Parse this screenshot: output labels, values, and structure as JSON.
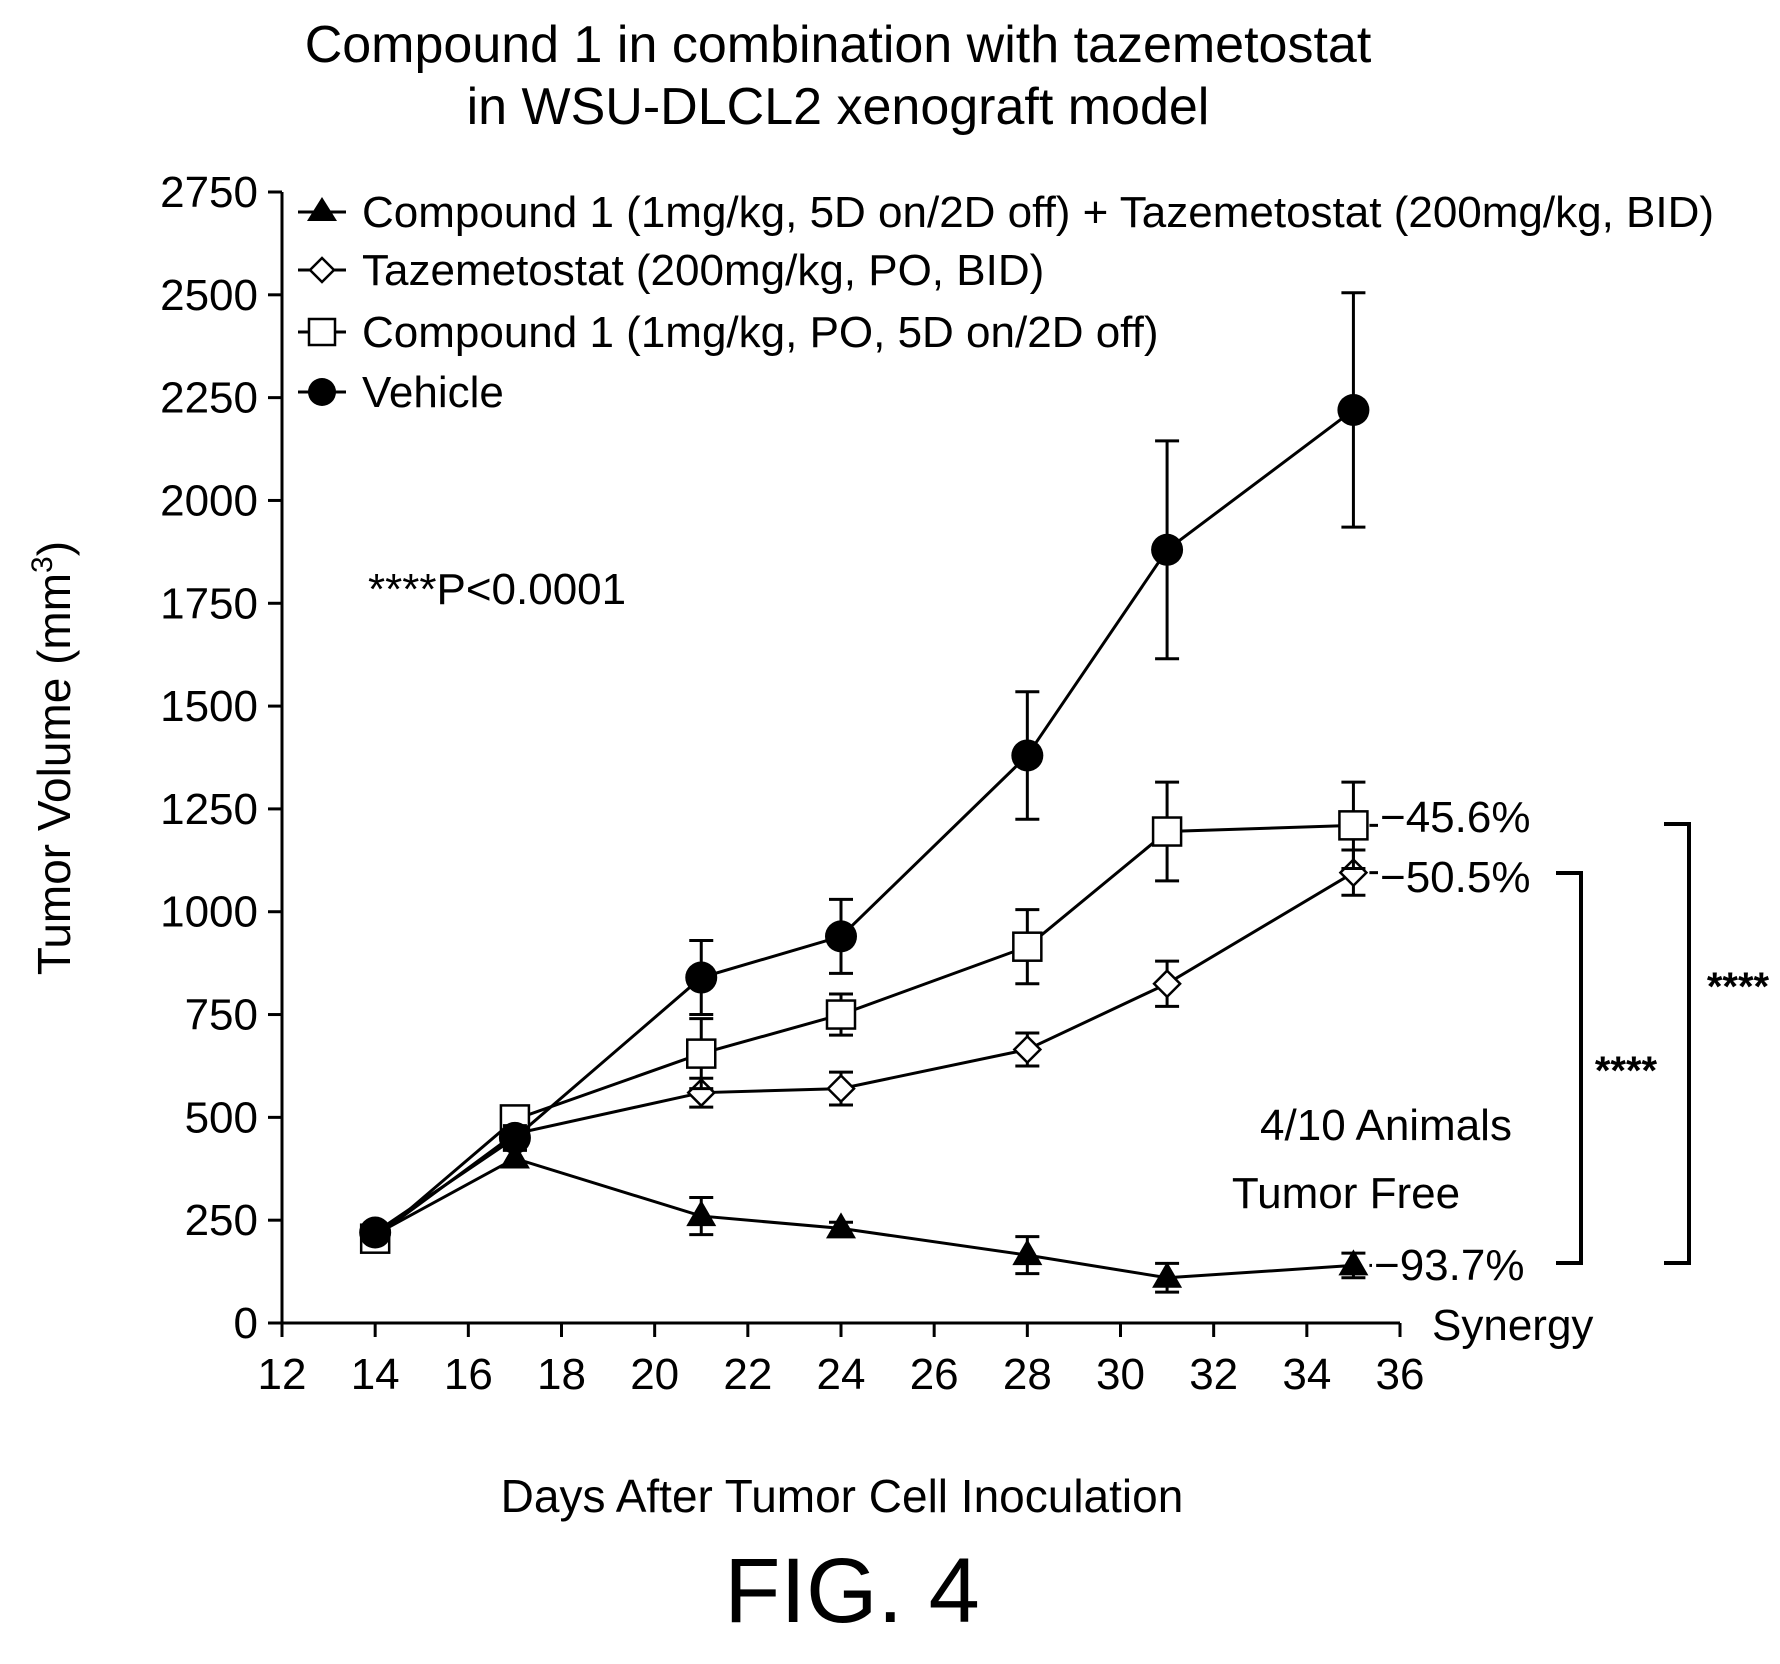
{
  "chart_data": {
    "type": "line",
    "title": "Compound 1 in combination with tazemetostat",
    "subtitle": "in WSU-DLCL2 xenograft model",
    "xlabel": "Days After Tumor Cell Inoculation",
    "ylabel": "Tumor Volume (mm",
    "ylabel_sup": "3",
    "ylabel_close": ")",
    "xlim": [
      12,
      36
    ],
    "ylim": [
      0,
      2750
    ],
    "xticks": [
      12,
      14,
      16,
      18,
      20,
      22,
      24,
      26,
      28,
      30,
      32,
      34,
      36
    ],
    "yticks": [
      0,
      250,
      500,
      750,
      1000,
      1250,
      1500,
      1750,
      2000,
      2250,
      2500,
      2750
    ],
    "grid": false,
    "legend_position": "top-left",
    "series": [
      {
        "name": "Compound 1 (1mg/kg, 5D on/2D off) + Tazemetostat (200mg/kg, BID)",
        "marker": "triangle-filled",
        "x": [
          14,
          17,
          21,
          24,
          28,
          31,
          35
        ],
        "y": [
          215,
          400,
          260,
          230,
          165,
          110,
          140
        ],
        "err": [
          15,
          20,
          45,
          15,
          45,
          35,
          30
        ]
      },
      {
        "name": "Tazemetostat (200mg/kg, PO, BID)",
        "marker": "diamond-open",
        "x": [
          14,
          17,
          21,
          24,
          28,
          31,
          35
        ],
        "y": [
          210,
          460,
          560,
          570,
          665,
          825,
          1095
        ],
        "err": [
          15,
          30,
          35,
          40,
          40,
          55,
          55
        ]
      },
      {
        "name": "Compound 1 (1mg/kg, PO, 5D on/2D off)",
        "marker": "square-open",
        "x": [
          14,
          17,
          21,
          24,
          28,
          31,
          35
        ],
        "y": [
          205,
          495,
          655,
          750,
          915,
          1195,
          1210
        ],
        "err": [
          15,
          25,
          85,
          50,
          90,
          120,
          105
        ]
      },
      {
        "name": "Vehicle",
        "marker": "circle-filled",
        "x": [
          14,
          17,
          21,
          24,
          28,
          31,
          35
        ],
        "y": [
          220,
          450,
          840,
          940,
          1380,
          1880,
          2220
        ],
        "err": [
          15,
          30,
          90,
          90,
          155,
          265,
          285
        ]
      }
    ],
    "end_labels": [
      "−45.6%",
      "−50.5%",
      "−93.7%"
    ],
    "annotations": {
      "pvalue": "****P<0.0001",
      "tumor_free_line1": "4/10 Animals",
      "tumor_free_line2": "Tumor Free",
      "synergy": "Synergy",
      "bracket_stars": "****"
    }
  },
  "figure_label": "FIG. 4"
}
